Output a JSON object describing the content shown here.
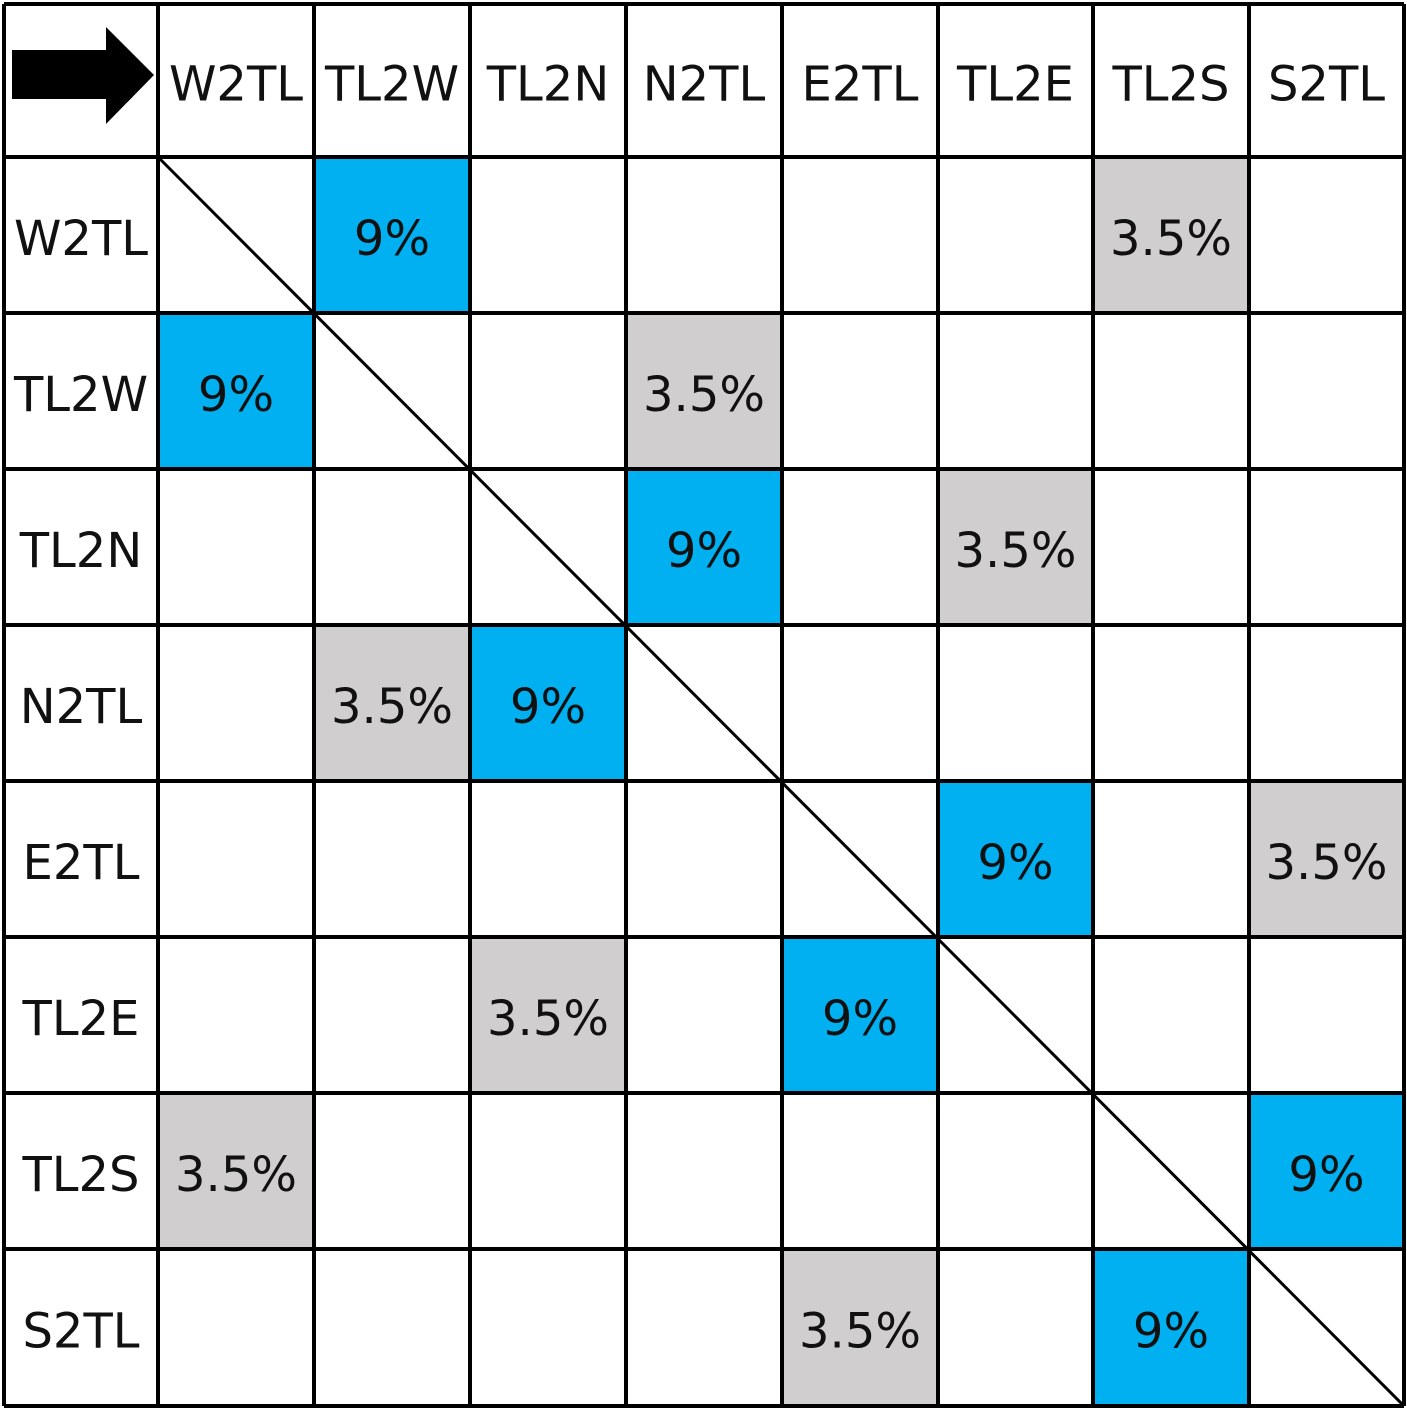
{
  "corner_icon": "right-arrow-icon",
  "colors": {
    "primary": "#00B0F0",
    "secondary": "#D0CECE",
    "grid": "#000000",
    "background": "#FFFFFF"
  },
  "column_headers": [
    "W2TL",
    "TL2W",
    "TL2N",
    "N2TL",
    "E2TL",
    "TL2E",
    "TL2S",
    "S2TL"
  ],
  "row_headers": [
    "W2TL",
    "TL2W",
    "TL2N",
    "N2TL",
    "E2TL",
    "TL2E",
    "TL2S",
    "S2TL"
  ],
  "matrix": [
    [
      "",
      "9%",
      "",
      "",
      "",
      "",
      "3.5%",
      ""
    ],
    [
      "9%",
      "",
      "",
      "3.5%",
      "",
      "",
      "",
      ""
    ],
    [
      "",
      "",
      "",
      "9%",
      "",
      "3.5%",
      "",
      ""
    ],
    [
      "",
      "3.5%",
      "9%",
      "",
      "",
      "",
      "",
      ""
    ],
    [
      "",
      "",
      "",
      "",
      "",
      "9%",
      "",
      "3.5%"
    ],
    [
      "",
      "",
      "3.5%",
      "",
      "9%",
      "",
      "",
      ""
    ],
    [
      "3.5%",
      "",
      "",
      "",
      "",
      "",
      "",
      "9%"
    ],
    [
      "",
      "",
      "",
      "",
      "3.5%",
      "",
      "9%",
      ""
    ]
  ],
  "highlight": [
    [
      "",
      "primary",
      "",
      "",
      "",
      "",
      "secondary",
      ""
    ],
    [
      "primary",
      "",
      "",
      "secondary",
      "",
      "",
      "",
      ""
    ],
    [
      "",
      "",
      "",
      "primary",
      "",
      "secondary",
      "",
      ""
    ],
    [
      "",
      "secondary",
      "primary",
      "",
      "",
      "",
      "",
      ""
    ],
    [
      "",
      "",
      "",
      "",
      "",
      "primary",
      "",
      "secondary"
    ],
    [
      "",
      "",
      "secondary",
      "",
      "primary",
      "",
      "",
      ""
    ],
    [
      "secondary",
      "",
      "",
      "",
      "",
      "",
      "",
      "primary"
    ],
    [
      "",
      "",
      "",
      "",
      "secondary",
      "",
      "primary",
      ""
    ]
  ]
}
